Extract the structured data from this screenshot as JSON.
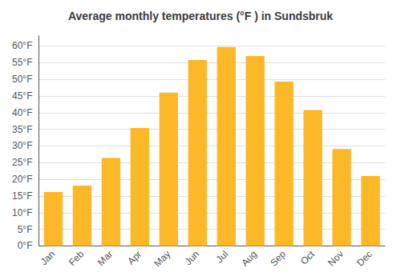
{
  "chart_data": {
    "type": "bar",
    "title": "Average monthly temperatures (°F ) in Sundsbruk",
    "categories": [
      "Jan",
      "Feb",
      "Mar",
      "Apr",
      "May",
      "Jun",
      "Jul",
      "Aug",
      "Sep",
      "Oct",
      "Nov",
      "Dec"
    ],
    "values": [
      16.2,
      18.1,
      26.4,
      35.4,
      46.0,
      55.8,
      59.7,
      57.0,
      49.3,
      40.8,
      29.1,
      21.0
    ],
    "color": "#FDB827",
    "ylim": [
      0,
      63
    ],
    "yticks": [
      {
        "value": 0,
        "label": "0°F"
      },
      {
        "value": 5,
        "label": "5°F"
      },
      {
        "value": 10,
        "label": "10°F"
      },
      {
        "value": 15,
        "label": "15°F"
      },
      {
        "value": 20,
        "label": "20°F"
      },
      {
        "value": 25,
        "label": "25°F"
      },
      {
        "value": 30,
        "label": "30°F"
      },
      {
        "value": 35,
        "label": "35°F"
      },
      {
        "value": 40,
        "label": "40°F"
      },
      {
        "value": 45,
        "label": "45°F"
      },
      {
        "value": 50,
        "label": "50°F"
      },
      {
        "value": 55,
        "label": "55°F"
      },
      {
        "value": 60,
        "label": "60°F"
      }
    ],
    "grid": true
  }
}
